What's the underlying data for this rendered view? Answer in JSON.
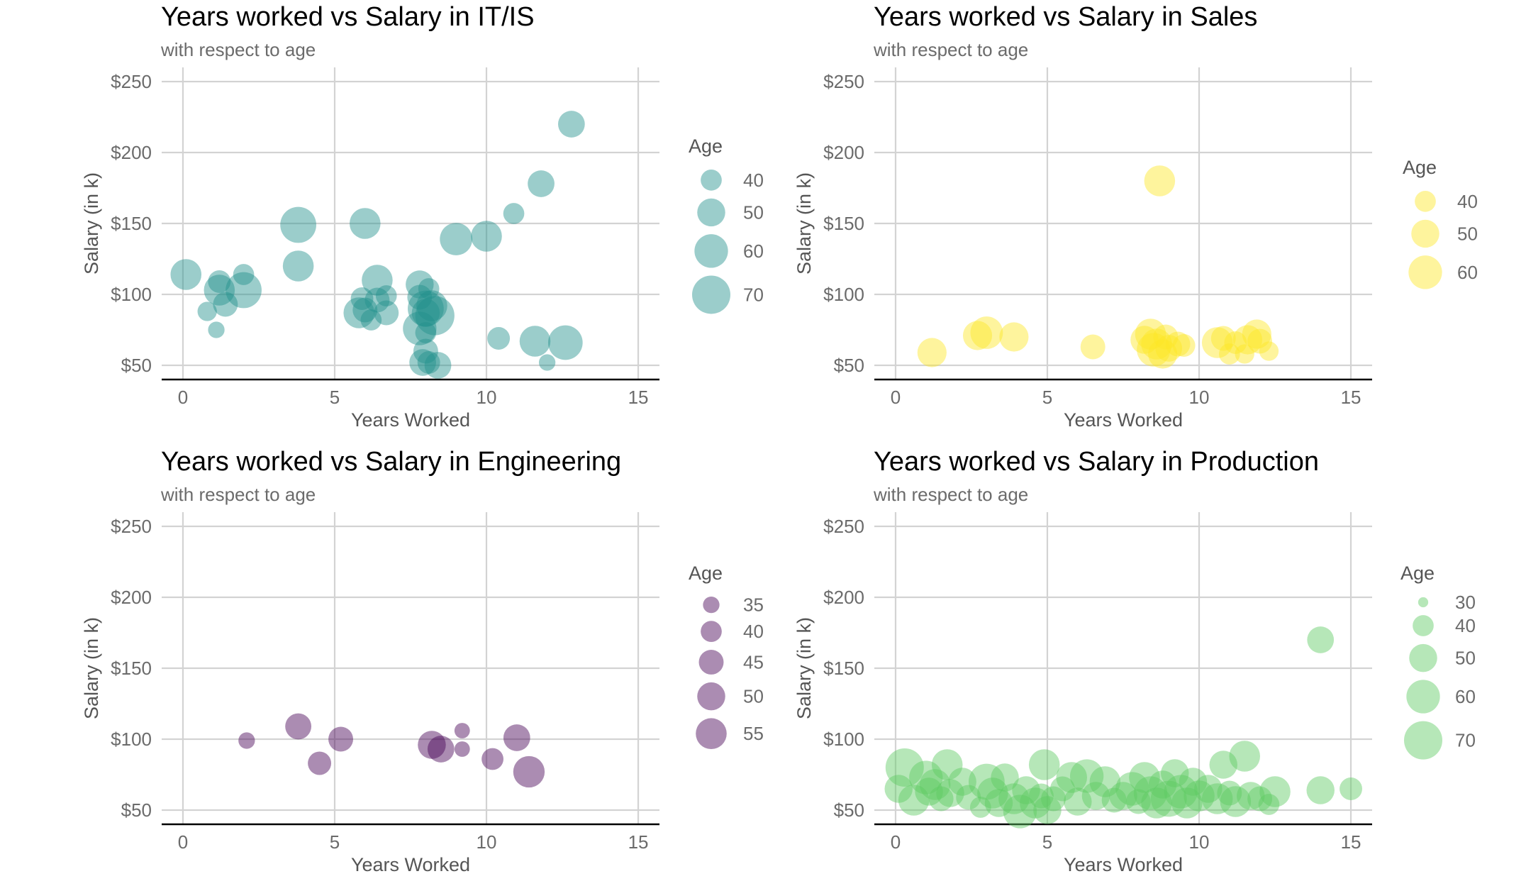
{
  "chart_data": [
    {
      "type": "scatter",
      "title": "Years worked vs Salary in IT/IS",
      "subtitle": "with respect to age",
      "xlabel": "Years Worked",
      "ylabel": "Salary (in k)",
      "xlim": [
        -0.7,
        15.7
      ],
      "ylim": [
        40,
        260
      ],
      "xticks": [
        0,
        5,
        10,
        15
      ],
      "yticks": [
        50,
        100,
        150,
        200,
        250
      ],
      "ytick_labels": [
        "$50",
        "$100",
        "$150",
        "$200",
        "$250"
      ],
      "color": "#21908c",
      "grid": true,
      "legend": {
        "title": "Age",
        "position": "right",
        "entries": [
          40,
          50,
          60,
          70
        ]
      },
      "points": [
        {
          "x": 0.1,
          "y": 114,
          "age": 55
        },
        {
          "x": 0.8,
          "y": 88,
          "age": 38
        },
        {
          "x": 1.1,
          "y": 75,
          "age": 35
        },
        {
          "x": 1.2,
          "y": 109,
          "age": 42
        },
        {
          "x": 1.2,
          "y": 103,
          "age": 55
        },
        {
          "x": 1.4,
          "y": 93,
          "age": 45
        },
        {
          "x": 2.0,
          "y": 114,
          "age": 40
        },
        {
          "x": 2.0,
          "y": 103,
          "age": 65
        },
        {
          "x": 3.8,
          "y": 149,
          "age": 65
        },
        {
          "x": 3.8,
          "y": 120,
          "age": 55
        },
        {
          "x": 5.8,
          "y": 87,
          "age": 55
        },
        {
          "x": 5.9,
          "y": 97,
          "age": 42
        },
        {
          "x": 6.0,
          "y": 150,
          "age": 55
        },
        {
          "x": 6.0,
          "y": 89,
          "age": 45
        },
        {
          "x": 6.2,
          "y": 82,
          "age": 40
        },
        {
          "x": 6.4,
          "y": 110,
          "age": 55
        },
        {
          "x": 6.4,
          "y": 96,
          "age": 45
        },
        {
          "x": 6.7,
          "y": 99,
          "age": 40
        },
        {
          "x": 6.7,
          "y": 87,
          "age": 45
        },
        {
          "x": 7.8,
          "y": 107,
          "age": 50
        },
        {
          "x": 7.8,
          "y": 98,
          "age": 45
        },
        {
          "x": 7.8,
          "y": 76,
          "age": 60
        },
        {
          "x": 7.9,
          "y": 52,
          "age": 48
        },
        {
          "x": 8.0,
          "y": 90,
          "age": 65
        },
        {
          "x": 8.0,
          "y": 87,
          "age": 50
        },
        {
          "x": 8.0,
          "y": 60,
          "age": 45
        },
        {
          "x": 8.0,
          "y": 73,
          "age": 40
        },
        {
          "x": 8.1,
          "y": 104,
          "age": 40
        },
        {
          "x": 8.1,
          "y": 52,
          "age": 42
        },
        {
          "x": 8.2,
          "y": 92,
          "age": 55
        },
        {
          "x": 8.3,
          "y": 85,
          "age": 72
        },
        {
          "x": 8.4,
          "y": 50,
          "age": 48
        },
        {
          "x": 9.0,
          "y": 139,
          "age": 58
        },
        {
          "x": 10.0,
          "y": 141,
          "age": 55
        },
        {
          "x": 10.4,
          "y": 69,
          "age": 42
        },
        {
          "x": 10.9,
          "y": 157,
          "age": 40
        },
        {
          "x": 11.6,
          "y": 67,
          "age": 55
        },
        {
          "x": 11.8,
          "y": 178,
          "age": 48
        },
        {
          "x": 12.0,
          "y": 52,
          "age": 35
        },
        {
          "x": 12.6,
          "y": 66,
          "age": 62
        },
        {
          "x": 12.8,
          "y": 220,
          "age": 48
        }
      ]
    },
    {
      "type": "scatter",
      "title": "Years worked vs Salary in Sales",
      "subtitle": "with respect to age",
      "xlabel": "Years Worked",
      "ylabel": "Salary (in k)",
      "xlim": [
        -0.7,
        15.7
      ],
      "ylim": [
        40,
        260
      ],
      "xticks": [
        0,
        5,
        10,
        15
      ],
      "yticks": [
        50,
        100,
        150,
        200,
        250
      ],
      "ytick_labels": [
        "$50",
        "$100",
        "$150",
        "$200",
        "$250"
      ],
      "color": "#fde725",
      "grid": true,
      "legend": {
        "title": "Age",
        "position": "right",
        "entries": [
          40,
          50,
          60
        ]
      },
      "points": [
        {
          "x": 1.2,
          "y": 59,
          "age": 52
        },
        {
          "x": 2.7,
          "y": 71,
          "age": 52
        },
        {
          "x": 3.0,
          "y": 73,
          "age": 58
        },
        {
          "x": 3.9,
          "y": 70,
          "age": 52
        },
        {
          "x": 6.5,
          "y": 63,
          "age": 45
        },
        {
          "x": 8.2,
          "y": 68,
          "age": 50
        },
        {
          "x": 8.4,
          "y": 72,
          "age": 55
        },
        {
          "x": 8.5,
          "y": 61,
          "age": 60
        },
        {
          "x": 8.6,
          "y": 65,
          "age": 55
        },
        {
          "x": 8.7,
          "y": 180,
          "age": 55
        },
        {
          "x": 8.8,
          "y": 58,
          "age": 52
        },
        {
          "x": 8.9,
          "y": 70,
          "age": 45
        },
        {
          "x": 9.0,
          "y": 62,
          "age": 48
        },
        {
          "x": 9.3,
          "y": 65,
          "age": 45
        },
        {
          "x": 9.5,
          "y": 64,
          "age": 42
        },
        {
          "x": 10.6,
          "y": 66,
          "age": 55
        },
        {
          "x": 10.8,
          "y": 69,
          "age": 45
        },
        {
          "x": 11.0,
          "y": 58,
          "age": 40
        },
        {
          "x": 11.2,
          "y": 66,
          "age": 42
        },
        {
          "x": 11.5,
          "y": 58,
          "age": 38
        },
        {
          "x": 11.6,
          "y": 68,
          "age": 52
        },
        {
          "x": 11.9,
          "y": 72,
          "age": 52
        },
        {
          "x": 12.0,
          "y": 67,
          "age": 45
        },
        {
          "x": 12.3,
          "y": 60,
          "age": 38
        }
      ]
    },
    {
      "type": "scatter",
      "title": "Years worked vs Salary in Engineering",
      "subtitle": "with respect to age",
      "xlabel": "Years Worked",
      "ylabel": "Salary (in k)",
      "xlim": [
        -0.7,
        15.7
      ],
      "ylim": [
        40,
        260
      ],
      "xticks": [
        0,
        5,
        10,
        15
      ],
      "yticks": [
        50,
        100,
        150,
        200,
        250
      ],
      "ytick_labels": [
        "$50",
        "$100",
        "$150",
        "$200",
        "$250"
      ],
      "color": "#440154",
      "grid": true,
      "legend": {
        "title": "Age",
        "position": "right",
        "entries": [
          35,
          40,
          45,
          50,
          55
        ]
      },
      "points": [
        {
          "x": 2.1,
          "y": 99,
          "age": 35
        },
        {
          "x": 3.8,
          "y": 109,
          "age": 47
        },
        {
          "x": 4.5,
          "y": 83,
          "age": 43
        },
        {
          "x": 5.2,
          "y": 100,
          "age": 45
        },
        {
          "x": 8.2,
          "y": 96,
          "age": 50
        },
        {
          "x": 8.5,
          "y": 93,
          "age": 48
        },
        {
          "x": 9.2,
          "y": 106,
          "age": 34
        },
        {
          "x": 9.2,
          "y": 93,
          "age": 34
        },
        {
          "x": 10.2,
          "y": 86,
          "age": 41
        },
        {
          "x": 11.0,
          "y": 101,
          "age": 48
        },
        {
          "x": 11.4,
          "y": 77,
          "age": 56
        }
      ]
    },
    {
      "type": "scatter",
      "title": "Years worked vs Salary in Production",
      "subtitle": "with respect to age",
      "xlabel": "Years Worked",
      "ylabel": "Salary (in k)",
      "xlim": [
        -0.7,
        15.7
      ],
      "ylim": [
        40,
        260
      ],
      "xticks": [
        0,
        5,
        10,
        15
      ],
      "yticks": [
        50,
        100,
        150,
        200,
        250
      ],
      "ytick_labels": [
        "$50",
        "$100",
        "$150",
        "$200",
        "$250"
      ],
      "color": "#5ec962",
      "grid": true,
      "legend": {
        "title": "Age",
        "position": "right",
        "entries": [
          30,
          40,
          50,
          60,
          70
        ]
      },
      "points": [
        {
          "x": 0.3,
          "y": 80,
          "age": 70
        },
        {
          "x": 0.1,
          "y": 65,
          "age": 50
        },
        {
          "x": 0.6,
          "y": 57,
          "age": 55
        },
        {
          "x": 1.0,
          "y": 73,
          "age": 60
        },
        {
          "x": 1.1,
          "y": 63,
          "age": 50
        },
        {
          "x": 1.3,
          "y": 68,
          "age": 55
        },
        {
          "x": 1.5,
          "y": 58,
          "age": 45
        },
        {
          "x": 1.7,
          "y": 82,
          "age": 55
        },
        {
          "x": 1.8,
          "y": 62,
          "age": 50
        },
        {
          "x": 2.2,
          "y": 70,
          "age": 50
        },
        {
          "x": 2.4,
          "y": 59,
          "age": 45
        },
        {
          "x": 2.8,
          "y": 52,
          "age": 40
        },
        {
          "x": 3.0,
          "y": 70,
          "age": 65
        },
        {
          "x": 3.2,
          "y": 62,
          "age": 55
        },
        {
          "x": 3.4,
          "y": 55,
          "age": 50
        },
        {
          "x": 3.6,
          "y": 73,
          "age": 50
        },
        {
          "x": 3.9,
          "y": 58,
          "age": 55
        },
        {
          "x": 4.1,
          "y": 49,
          "age": 60
        },
        {
          "x": 4.3,
          "y": 64,
          "age": 50
        },
        {
          "x": 4.6,
          "y": 55,
          "age": 55
        },
        {
          "x": 4.8,
          "y": 60,
          "age": 45
        },
        {
          "x": 4.9,
          "y": 82,
          "age": 55
        },
        {
          "x": 5.0,
          "y": 50,
          "age": 50
        },
        {
          "x": 5.2,
          "y": 58,
          "age": 45
        },
        {
          "x": 5.5,
          "y": 65,
          "age": 45
        },
        {
          "x": 5.8,
          "y": 73,
          "age": 55
        },
        {
          "x": 6.0,
          "y": 56,
          "age": 50
        },
        {
          "x": 6.3,
          "y": 74,
          "age": 60
        },
        {
          "x": 6.6,
          "y": 60,
          "age": 50
        },
        {
          "x": 6.9,
          "y": 70,
          "age": 55
        },
        {
          "x": 7.2,
          "y": 57,
          "age": 45
        },
        {
          "x": 7.5,
          "y": 60,
          "age": 50
        },
        {
          "x": 7.8,
          "y": 65,
          "age": 60
        },
        {
          "x": 8.0,
          "y": 56,
          "age": 45
        },
        {
          "x": 8.2,
          "y": 73,
          "age": 55
        },
        {
          "x": 8.4,
          "y": 62,
          "age": 60
        },
        {
          "x": 8.6,
          "y": 55,
          "age": 55
        },
        {
          "x": 8.8,
          "y": 68,
          "age": 50
        },
        {
          "x": 9.0,
          "y": 58,
          "age": 65
        },
        {
          "x": 9.2,
          "y": 76,
          "age": 50
        },
        {
          "x": 9.4,
          "y": 63,
          "age": 60
        },
        {
          "x": 9.6,
          "y": 55,
          "age": 55
        },
        {
          "x": 9.8,
          "y": 70,
          "age": 50
        },
        {
          "x": 10.0,
          "y": 60,
          "age": 55
        },
        {
          "x": 10.3,
          "y": 65,
          "age": 50
        },
        {
          "x": 10.6,
          "y": 58,
          "age": 55
        },
        {
          "x": 10.8,
          "y": 82,
          "age": 50
        },
        {
          "x": 11.0,
          "y": 62,
          "age": 45
        },
        {
          "x": 11.2,
          "y": 56,
          "age": 55
        },
        {
          "x": 11.5,
          "y": 88,
          "age": 55
        },
        {
          "x": 11.7,
          "y": 60,
          "age": 50
        },
        {
          "x": 12.0,
          "y": 58,
          "age": 45
        },
        {
          "x": 12.5,
          "y": 63,
          "age": 55
        },
        {
          "x": 12.3,
          "y": 54,
          "age": 40
        },
        {
          "x": 14.0,
          "y": 170,
          "age": 48
        },
        {
          "x": 14.0,
          "y": 64,
          "age": 50
        },
        {
          "x": 15.0,
          "y": 65,
          "age": 42
        }
      ]
    }
  ]
}
